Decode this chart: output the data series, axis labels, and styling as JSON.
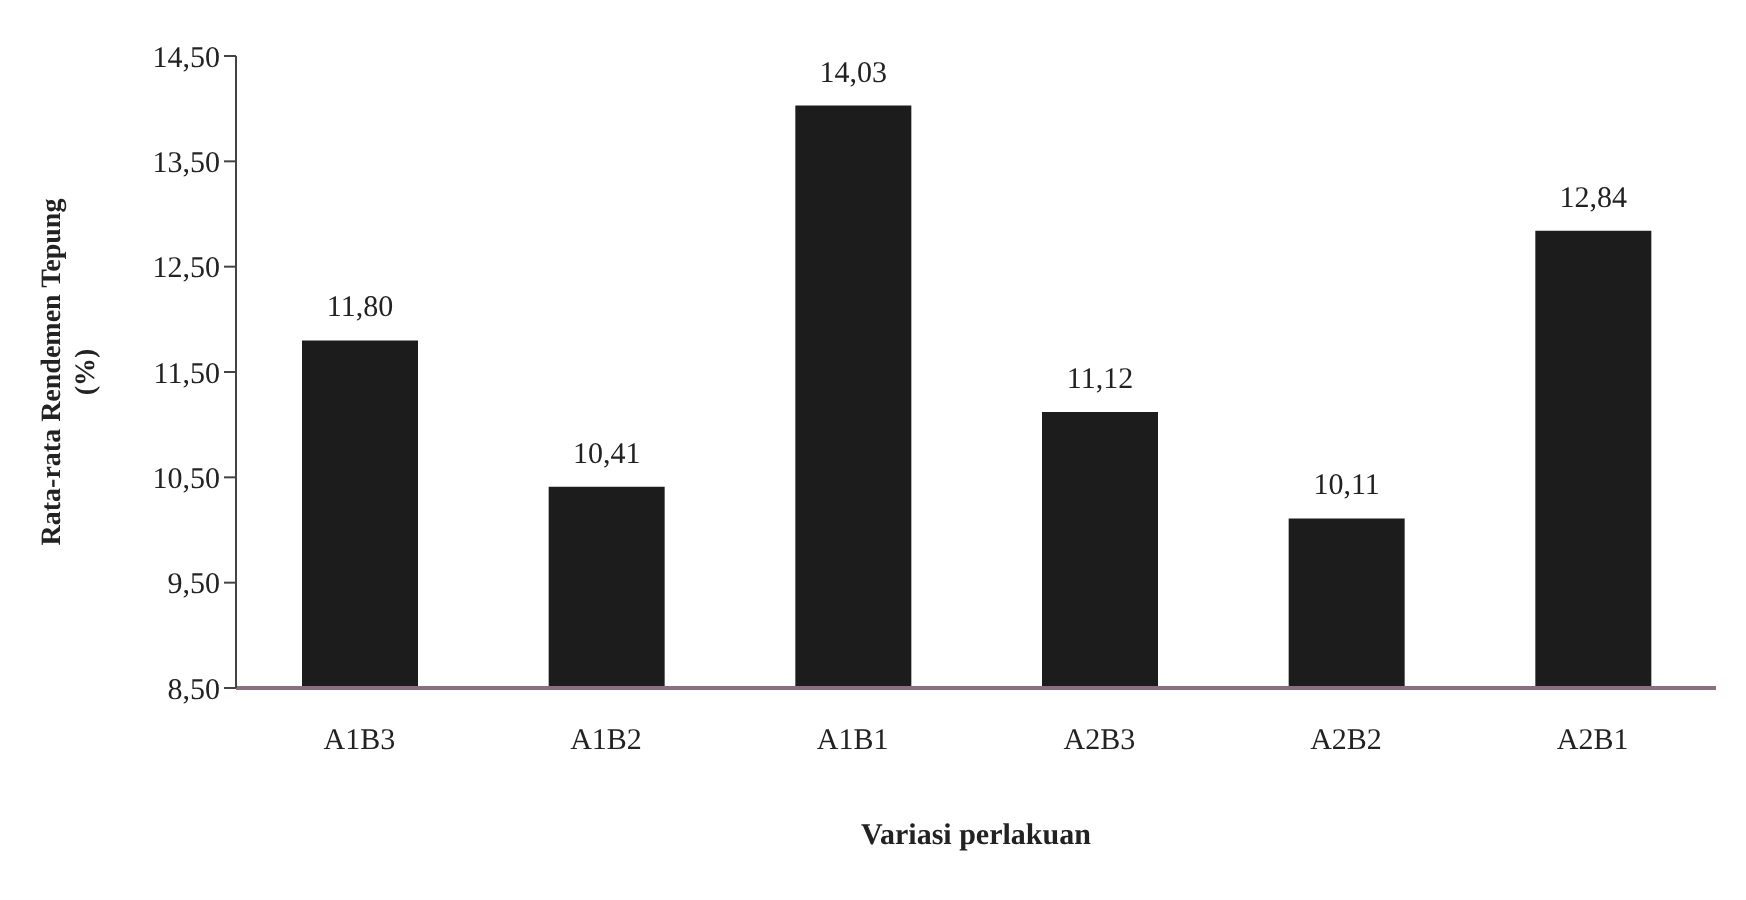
{
  "chart_data": {
    "type": "bar",
    "xlabel": "Variasi perlakuan",
    "ylabel": "Rata-rata Rendemen Tepung (%)",
    "categories": [
      "A1B3",
      "A1B2",
      "A1B1",
      "A2B3",
      "A2B2",
      "A2B1"
    ],
    "values": [
      11.8,
      10.41,
      14.03,
      11.12,
      10.11,
      12.84
    ],
    "value_labels": [
      "11,80",
      "10,41",
      "14,03",
      "11,12",
      "10,11",
      "12,84"
    ],
    "color": "#1c1c1c",
    "ylim": [
      8.5,
      14.5
    ],
    "yticks": [
      {
        "value": 8.5,
        "label": "8,50"
      },
      {
        "value": 9.5,
        "label": "9,50"
      },
      {
        "value": 10.5,
        "label": "10,50"
      },
      {
        "value": 11.5,
        "label": "11,50"
      },
      {
        "value": 12.5,
        "label": "12,50"
      },
      {
        "value": 13.5,
        "label": "13,50"
      },
      {
        "value": 14.5,
        "label": "14,50"
      }
    ],
    "grid": false,
    "legend": false
  }
}
